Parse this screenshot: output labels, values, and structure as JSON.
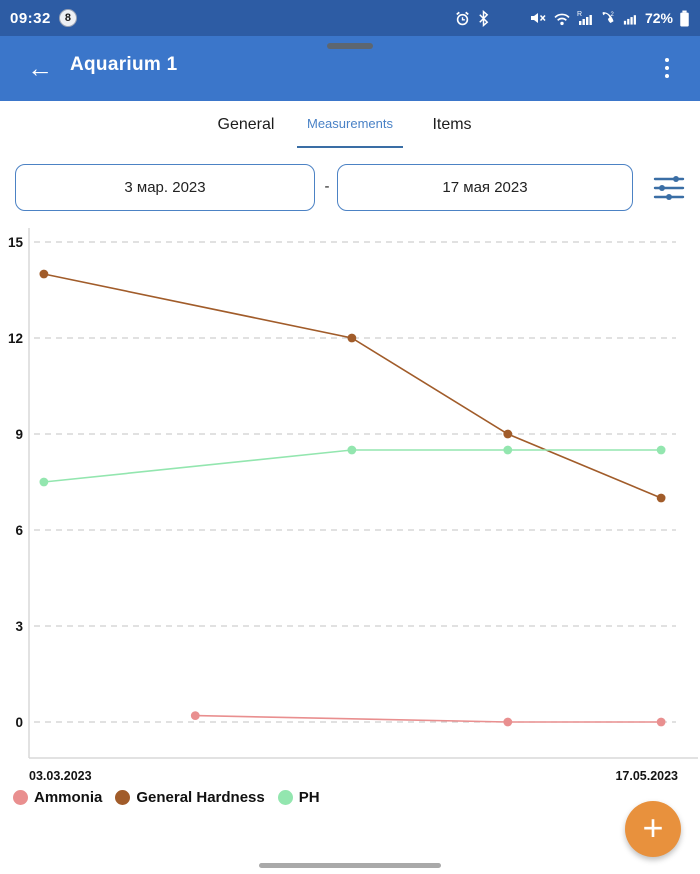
{
  "status_bar": {
    "time": "09:32",
    "notification_badge": "8",
    "battery_percent": "72%",
    "icons": [
      "alarm-icon",
      "bluetooth-icon",
      "mute-icon",
      "wifi-icon",
      "signal-roaming-icon",
      "wifi-calling-icon",
      "signal-icon",
      "battery-icon"
    ]
  },
  "header": {
    "title": "Aquarium 1",
    "back_icon": "arrow-left-icon",
    "menu_icon": "kebab-menu-icon",
    "back_glyph": "←"
  },
  "tabs": [
    {
      "label": "General",
      "active": false
    },
    {
      "label": "Measurements",
      "active": true
    },
    {
      "label": "Items",
      "active": false
    }
  ],
  "date_filter": {
    "start_date": "3 мар. 2023",
    "separator": "-",
    "end_date": "17 мая 2023",
    "filter_icon": "tune-filter-icon"
  },
  "chart_data": {
    "type": "line",
    "title": "",
    "xlabel": "",
    "ylabel": "",
    "ylim": [
      -1,
      15.5
    ],
    "grid": "horizontal-dashed",
    "y_ticks": [
      0,
      3,
      6,
      9,
      12,
      15
    ],
    "x_tick_labels": [
      "03.03.2023",
      "17.05.2023"
    ],
    "legend_position": "bottom-left",
    "series": [
      {
        "name": "Ammonia",
        "color": "#e98f8f",
        "points": [
          {
            "x": 0.257,
            "y": 0.2
          },
          {
            "x": 0.74,
            "y": 0.0
          },
          {
            "x": 0.977,
            "y": 0.0
          }
        ]
      },
      {
        "name": "General Hardness",
        "color": "#a15c2a",
        "points": [
          {
            "x": 0.023,
            "y": 14
          },
          {
            "x": 0.499,
            "y": 12
          },
          {
            "x": 0.74,
            "y": 9
          },
          {
            "x": 0.977,
            "y": 7
          }
        ]
      },
      {
        "name": "PH",
        "color": "#93e6af",
        "points": [
          {
            "x": 0.023,
            "y": 7.5
          },
          {
            "x": 0.499,
            "y": 8.5
          },
          {
            "x": 0.74,
            "y": 8.5
          },
          {
            "x": 0.977,
            "y": 8.5
          }
        ]
      }
    ],
    "legend": [
      {
        "name": "Ammonia",
        "color": "#e98f8f"
      },
      {
        "name": "General Hardness",
        "color": "#a15c2a"
      },
      {
        "name": "PH",
        "color": "#93e6af"
      }
    ]
  },
  "fab": {
    "label": "+"
  },
  "colors": {
    "status_bar_bg": "#2d5ca4",
    "header_bg": "#3b76ca",
    "accent_blue": "#3a6ea5",
    "active_tab": "#4a82c6",
    "fab_orange": "#e8913d",
    "grid_line": "#cfcfcf"
  }
}
